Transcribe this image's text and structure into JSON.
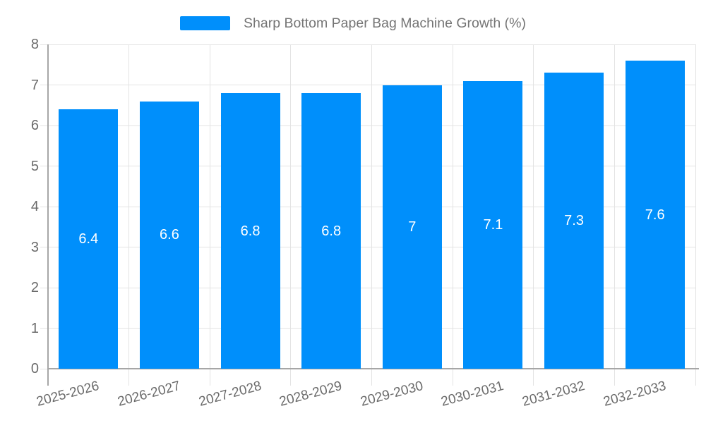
{
  "chart_data": {
    "type": "bar",
    "title": "Sharp Bottom Paper Bag Machine Growth (%)",
    "series_name": "Sharp Bottom Paper Bag Machine Growth (%)",
    "categories": [
      "2025-2026",
      "2026-2027",
      "2027-2028",
      "2028-2029",
      "2029-2030",
      "2030-2031",
      "2031-2032",
      "2032-2033"
    ],
    "values": [
      6.4,
      6.6,
      6.8,
      6.8,
      7,
      7.1,
      7.3,
      7.6
    ],
    "value_labels": [
      "6.4",
      "6.6",
      "6.8",
      "6.8",
      "7",
      "7.1",
      "7.3",
      "7.6"
    ],
    "xlabel": "",
    "ylabel": "",
    "ylim": [
      0,
      8
    ],
    "yticks": [
      0,
      1,
      2,
      3,
      4,
      5,
      6,
      7,
      8
    ],
    "grid": "on",
    "legend_position": "top-center",
    "x_label_rotation_deg": -15,
    "colors": {
      "bar": "#008FFB",
      "value_label": "#ffffff",
      "axis_label": "#6b6b6b",
      "legend_text": "#757575",
      "gridline": "#e3e3e3",
      "axis_line": "#a6a6a6",
      "background": "#ffffff"
    }
  }
}
